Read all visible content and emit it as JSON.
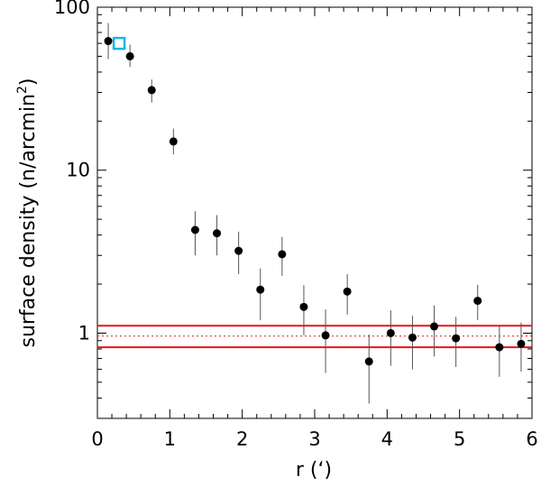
{
  "chart_data": {
    "type": "scatter",
    "xlabel": "r (‘)",
    "ylabel": "surface density (n/arcmin",
    "ylabel_sup": "2",
    "ylabel_close": ")",
    "xlim": [
      0,
      6
    ],
    "ylim": [
      0.3,
      100
    ],
    "yscale": "log",
    "xticks": [
      0,
      1,
      2,
      3,
      4,
      5,
      6
    ],
    "xtick_labels": [
      "0",
      "1",
      "2",
      "3",
      "4",
      "5",
      "6"
    ],
    "yticks": [
      1,
      10,
      100
    ],
    "ytick_labels": [
      "1",
      "10",
      "100"
    ],
    "grid": false,
    "colors": {
      "points": "#000000",
      "errorbars": "#555555",
      "background_lines": "#e8141b",
      "marker": "#1ab4e6"
    },
    "series": [
      {
        "x": [
          0.15,
          0.45,
          0.75,
          1.05,
          1.35,
          1.65,
          1.95,
          2.25,
          2.55,
          2.85,
          3.15,
          3.45,
          3.75,
          4.05,
          4.35,
          4.65,
          4.95,
          5.25,
          5.55,
          5.85
        ],
        "y": [
          62,
          50,
          31,
          15,
          4.3,
          4.1,
          3.2,
          1.85,
          3.05,
          1.45,
          0.97,
          1.8,
          0.67,
          1.0,
          0.94,
          1.1,
          0.93,
          1.58,
          0.82,
          0.86
        ],
        "y_low": [
          48,
          43,
          26,
          12.5,
          3.0,
          3.0,
          2.3,
          1.2,
          2.25,
          0.97,
          0.57,
          1.3,
          0.37,
          0.63,
          0.6,
          0.72,
          0.62,
          1.2,
          0.54,
          0.58
        ],
        "y_high": [
          80,
          59,
          36,
          18,
          5.6,
          5.3,
          4.2,
          2.5,
          3.9,
          1.97,
          1.4,
          2.3,
          0.98,
          1.38,
          1.28,
          1.48,
          1.26,
          1.98,
          1.12,
          1.16
        ]
      }
    ],
    "background_level": 0.96,
    "background_upper": 1.11,
    "background_lower": 0.82,
    "highlight_point": {
      "x": 0.3,
      "y": 60
    }
  }
}
